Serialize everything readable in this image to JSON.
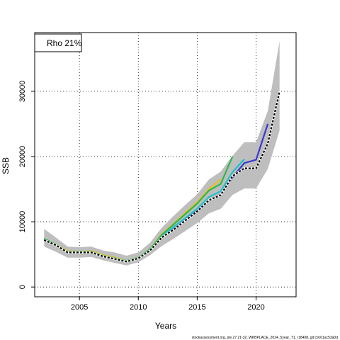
{
  "chart_data": {
    "type": "line",
    "xlabel": "Years",
    "ylabel": "SSB",
    "xlim": [
      2001.2,
      2023.4
    ],
    "ylim": [
      -1500,
      39000
    ],
    "x_ticks": [
      2005,
      2010,
      2015,
      2020
    ],
    "y_ticks": [
      0,
      10000,
      20000,
      30000
    ],
    "grid": "dotted",
    "legend": {
      "position": "top-left",
      "label": "Rho 21%"
    },
    "footer": "stockassessment.org, ple.27.21-32_WKBPLACE_2024_5year_T1, r18408, git:c9c61ac53a0d",
    "confidence_band": {
      "x": [
        2002,
        2003,
        2004,
        2005,
        2006,
        2007,
        2008,
        2009,
        2010,
        2011,
        2012,
        2013,
        2014,
        2015,
        2016,
        2017,
        2018,
        2019,
        2020,
        2021,
        2022
      ],
      "lower": [
        6200,
        5400,
        4500,
        4500,
        4600,
        4100,
        3700,
        3300,
        3800,
        4900,
        6300,
        7400,
        8600,
        9800,
        11300,
        12000,
        14100,
        15100,
        15100,
        18100,
        24000
      ],
      "upper": [
        8900,
        7600,
        6200,
        6100,
        6200,
        5600,
        5300,
        4800,
        5300,
        6800,
        9100,
        10900,
        12600,
        14200,
        16500,
        17700,
        20100,
        22200,
        22200,
        27000,
        37700
      ]
    },
    "series": [
      {
        "color": "#e8c01e",
        "x": [
          2002,
          2003,
          2004,
          2005,
          2006,
          2007,
          2008,
          2009,
          2010,
          2011,
          2012,
          2013,
          2014,
          2015,
          2016,
          2017
        ],
        "values": [
          7400,
          6500,
          5500,
          5400,
          5500,
          4900,
          4500,
          4000,
          4500,
          5800,
          8100,
          9700,
          11400,
          13000,
          15000,
          16500
        ]
      },
      {
        "color": "#2eb84a",
        "x": [
          2002,
          2003,
          2004,
          2005,
          2006,
          2007,
          2008,
          2009,
          2010,
          2011,
          2012,
          2013,
          2014,
          2015,
          2016,
          2017,
          2018
        ],
        "values": [
          7400,
          6500,
          5400,
          5400,
          5400,
          4800,
          4400,
          4000,
          4500,
          5800,
          8000,
          9600,
          11200,
          12800,
          14800,
          15800,
          20000
        ]
      },
      {
        "color": "#1ec3c8",
        "x": [
          2002,
          2003,
          2004,
          2005,
          2006,
          2007,
          2008,
          2009,
          2010,
          2011,
          2012,
          2013,
          2014,
          2015,
          2016,
          2017,
          2018,
          2019
        ],
        "values": [
          7300,
          6400,
          5300,
          5300,
          5300,
          4700,
          4300,
          3900,
          4400,
          5600,
          7700,
          9200,
          10600,
          12000,
          13800,
          14700,
          17600,
          19600
        ]
      },
      {
        "color": "#3a3ad0",
        "x": [
          2002,
          2003,
          2004,
          2005,
          2006,
          2007,
          2008,
          2009,
          2010,
          2011,
          2012,
          2013,
          2014,
          2015,
          2016,
          2017,
          2018,
          2019,
          2020,
          2021
        ],
        "values": [
          7200,
          6400,
          5300,
          5300,
          5300,
          4700,
          4300,
          3900,
          4400,
          5600,
          7600,
          8900,
          10300,
          11700,
          13300,
          14200,
          16800,
          19000,
          19500,
          25000
        ]
      },
      {
        "color": "#000000",
        "dashed": true,
        "x": [
          2002,
          2003,
          2004,
          2005,
          2006,
          2007,
          2008,
          2009,
          2010,
          2011,
          2012,
          2013,
          2014,
          2015,
          2016,
          2017,
          2018,
          2019,
          2020,
          2021,
          2022
        ],
        "values": [
          7200,
          6400,
          5300,
          5300,
          5300,
          4700,
          4300,
          3900,
          4400,
          5600,
          7600,
          8800,
          10200,
          11600,
          13300,
          14100,
          17000,
          18200,
          18200,
          22000,
          30000
        ]
      }
    ]
  }
}
